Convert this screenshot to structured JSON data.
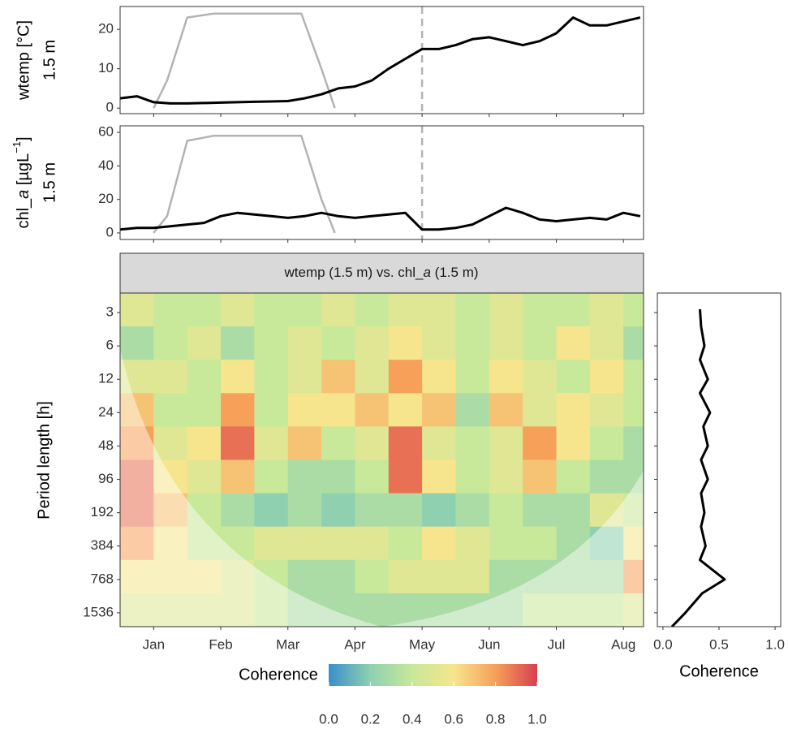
{
  "chart_data": [
    {
      "type": "line",
      "xlim": [
        -0.5,
        7.3
      ],
      "xticks": [
        0,
        1,
        2,
        3,
        4,
        5,
        6,
        7
      ],
      "ylim": [
        -1.4,
        25.8
      ],
      "yticks": [
        0,
        10,
        20
      ],
      "ylabel": [
        "wtemp [°C]",
        "1.5 m"
      ],
      "vline": 4,
      "series": [
        {
          "color": "#000000",
          "x": [
            -0.5,
            -0.25,
            0,
            0.25,
            0.5,
            0.75,
            1,
            1.25,
            1.5,
            1.75,
            2,
            2.25,
            2.5,
            2.75,
            3,
            3.25,
            3.5,
            3.75,
            4,
            4.25,
            4.5,
            4.75,
            5,
            5.25,
            5.5,
            5.75,
            6,
            6.25,
            6.5,
            6.75,
            7,
            7.25
          ],
          "values": [
            2.5,
            3,
            1.5,
            1.2,
            1.2,
            1.3,
            1.4,
            1.5,
            1.6,
            1.7,
            1.8,
            2.5,
            3.5,
            5,
            5.5,
            7,
            10,
            12.5,
            15,
            15,
            16,
            17.5,
            18,
            17,
            16,
            17,
            19,
            23,
            21,
            21,
            22,
            23
          ]
        },
        {
          "color": "#b3b3b3",
          "x": [
            0,
            0.2,
            0.5,
            0.9,
            1.3,
            1.8,
            2.2,
            2.5,
            2.7
          ],
          "values": [
            0,
            7,
            23,
            24,
            24,
            24,
            24,
            10,
            0
          ]
        }
      ]
    },
    {
      "type": "line",
      "xlim": [
        -0.5,
        7.3
      ],
      "xticks": [
        0,
        1,
        2,
        3,
        4,
        5,
        6,
        7
      ],
      "ylim": [
        -3.9,
        63.9
      ],
      "yticks": [
        0,
        20,
        40,
        60
      ],
      "ylabel": [
        "chl_",
        "a",
        " [µgL",
        "−1",
        "]",
        "1.5 m"
      ],
      "vline": 4,
      "series": [
        {
          "color": "#000000",
          "x": [
            -0.5,
            -0.25,
            0,
            0.25,
            0.5,
            0.75,
            1,
            1.25,
            1.5,
            1.75,
            2,
            2.25,
            2.5,
            2.75,
            3,
            3.25,
            3.5,
            3.75,
            4,
            4.25,
            4.5,
            4.75,
            5,
            5.25,
            5.5,
            5.75,
            6,
            6.25,
            6.5,
            6.75,
            7,
            7.25
          ],
          "values": [
            2,
            3,
            3,
            4,
            5,
            6,
            10,
            12,
            11,
            10,
            9,
            10,
            12,
            10,
            9,
            10,
            11,
            12,
            2,
            2,
            3,
            5,
            10,
            15,
            12,
            8,
            7,
            8,
            9,
            8,
            12,
            10
          ]
        },
        {
          "color": "#b3b3b3",
          "x": [
            0,
            0.2,
            0.5,
            0.9,
            1.3,
            1.8,
            2.2,
            2.5,
            2.7
          ],
          "values": [
            0,
            10,
            55,
            58,
            58,
            58,
            58,
            20,
            0
          ]
        }
      ]
    },
    {
      "type": "heatmap",
      "strip": [
        "wtemp (1.5 m) vs. chl_",
        "a",
        " (1.5 m)"
      ],
      "ylabel": "Period length [h]",
      "xlim": [
        -0.5,
        7.3
      ],
      "xticks": [
        {
          "value": 0,
          "label": "Jan"
        },
        {
          "value": 1,
          "label": "Feb"
        },
        {
          "value": 2,
          "label": "Mar"
        },
        {
          "value": 3,
          "label": "Apr"
        },
        {
          "value": 4,
          "label": "May"
        },
        {
          "value": 5,
          "label": "Jun"
        },
        {
          "value": 6,
          "label": "Jul"
        },
        {
          "value": 7,
          "label": "Aug"
        }
      ],
      "ylim": [
        2,
        2048
      ],
      "log_y": true,
      "yticks": [
        3,
        6,
        12,
        24,
        48,
        96,
        192,
        384,
        768,
        1536
      ],
      "x_edges": [
        -0.5,
        0,
        0.5,
        1,
        1.5,
        2,
        2.5,
        3,
        3.5,
        4,
        4.5,
        5,
        5.5,
        6,
        6.5,
        7,
        7.5
      ],
      "y_edges": [
        2,
        4,
        8,
        16,
        32,
        64,
        128,
        256,
        512,
        1024,
        2048
      ],
      "z": [
        [
          0.5,
          0.4,
          0.4,
          0.5,
          0.4,
          0.4,
          0.5,
          0.4,
          0.5,
          0.5,
          0.4,
          0.5,
          0.4,
          0.4,
          0.5,
          0.4
        ],
        [
          0.3,
          0.4,
          0.5,
          0.3,
          0.4,
          0.5,
          0.4,
          0.5,
          0.6,
          0.5,
          0.4,
          0.5,
          0.4,
          0.6,
          0.5,
          0.3
        ],
        [
          0.5,
          0.5,
          0.4,
          0.6,
          0.4,
          0.5,
          0.7,
          0.5,
          0.8,
          0.6,
          0.4,
          0.6,
          0.5,
          0.4,
          0.6,
          0.4
        ],
        [
          0.7,
          0.4,
          0.4,
          0.8,
          0.4,
          0.6,
          0.6,
          0.7,
          0.6,
          0.7,
          0.3,
          0.7,
          0.5,
          0.6,
          0.5,
          0.4
        ],
        [
          0.8,
          0.5,
          0.6,
          0.9,
          0.5,
          0.7,
          0.4,
          0.5,
          0.9,
          0.5,
          0.4,
          0.5,
          0.8,
          0.6,
          0.4,
          0.3
        ],
        [
          0.9,
          0.6,
          0.5,
          0.7,
          0.4,
          0.3,
          0.3,
          0.4,
          0.9,
          0.6,
          0.4,
          0.5,
          0.7,
          0.4,
          0.3,
          0.3
        ],
        [
          0.9,
          0.7,
          0.4,
          0.3,
          0.2,
          0.3,
          0.2,
          0.3,
          0.3,
          0.2,
          0.3,
          0.4,
          0.3,
          0.3,
          0.5,
          0.4
        ],
        [
          0.8,
          0.6,
          0.4,
          0.4,
          0.5,
          0.5,
          0.5,
          0.5,
          0.4,
          0.6,
          0.5,
          0.4,
          0.4,
          0.3,
          0.2,
          0.6
        ],
        [
          0.6,
          0.6,
          0.6,
          0.5,
          0.4,
          0.3,
          0.3,
          0.4,
          0.5,
          0.5,
          0.5,
          0.3,
          0.3,
          0.3,
          0.3,
          0.8
        ],
        [
          0.5,
          0.5,
          0.5,
          0.5,
          0.4,
          0.3,
          0.3,
          0.3,
          0.3,
          0.3,
          0.3,
          0.3,
          0.4,
          0.4,
          0.4,
          0.5
        ]
      ],
      "zlim": [
        0,
        1
      ],
      "colorscale": [
        "#3a8fc9",
        "#8fd0b0",
        "#c8e89a",
        "#f6e58d",
        "#f6a05a",
        "#d7404f"
      ],
      "colorbar": {
        "title": "Coherence",
        "ticks": [
          {
            "value": 0,
            "label": "0.0"
          },
          {
            "value": 0.2,
            "label": "0.2"
          },
          {
            "value": 0.4,
            "label": "0.4"
          },
          {
            "value": 0.6,
            "label": "0.6"
          },
          {
            "value": 0.8,
            "label": "0.8"
          },
          {
            "value": 1,
            "label": "1.0"
          }
        ]
      }
    },
    {
      "type": "line",
      "xlabel": "Coherence",
      "xlim": [
        -0.05,
        1.05
      ],
      "xticks": [
        {
          "value": 0,
          "label": "0.0"
        },
        {
          "value": 0.5,
          "label": "0.5"
        },
        {
          "value": 1,
          "label": "1.0"
        }
      ],
      "ylim": [
        2,
        2048
      ],
      "log_y": true,
      "yticks": [
        3,
        6,
        12,
        24,
        48,
        96,
        192,
        384,
        768,
        1536
      ],
      "series": [
        {
          "color": "#000000",
          "y": [
            2.8,
            4,
            6,
            8,
            12,
            16,
            24,
            32,
            48,
            64,
            96,
            128,
            192,
            256,
            384,
            512,
            768,
            1024,
            1536,
            2048
          ],
          "values": [
            0.33,
            0.34,
            0.37,
            0.33,
            0.4,
            0.33,
            0.42,
            0.36,
            0.4,
            0.34,
            0.4,
            0.34,
            0.37,
            0.34,
            0.38,
            0.33,
            0.55,
            0.35,
            0.2,
            0.08
          ]
        }
      ]
    }
  ]
}
